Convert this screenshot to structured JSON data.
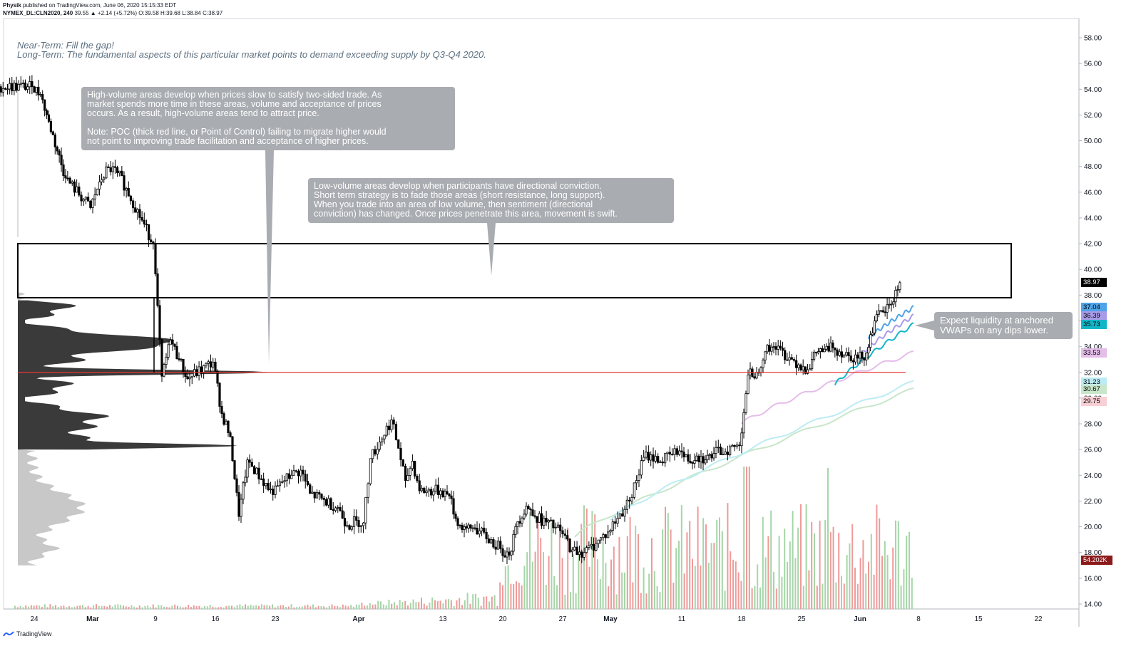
{
  "header": {
    "author": "Physik",
    "published": "published on TradingView.com, June 06, 2020 15:15:33 EDT",
    "symbol_line": "NYMEX_DL:CLN2020, 240",
    "last": "39.55",
    "change": "▲ +2.14 (+5.72%)",
    "ohlc": "O:39.58 H:39.68 L:38.84 C:38.97"
  },
  "notes": {
    "near_term": "Near-Term: Fill the gap!",
    "long_term": "Long-Term: The fundamental aspects of this particular market points to demand exceeding supply by Q3-Q4 2020."
  },
  "callouts": {
    "high_volume_p1": "High-volume areas develop when prices slow to satisfy two-sided trade. As\nmarket spends more time in these areas, volume and acceptance of prices\noccurs. As a result, high-volume areas tend to attract price.",
    "high_volume_p2": "Note: POC (thick red line, or Point of Control) failing to migrate higher would\nnot point to improving trade facilitation and acceptance of higher prices.",
    "low_volume": "Low-volume areas develop when participants have directional conviction.\nShort term strategy is to fade those areas (short resistance, long support).\nWhen you trade into an area of low volume, then sentiment (directional\nconviction) has changed. Once prices penetrate this area, movement is swift.",
    "liquidity": "Expect liquidity at anchored\nVWAPs on any dips lower."
  },
  "price_tags": [
    {
      "label": "38.97",
      "bg": "#000000",
      "fg": "#ffffff",
      "price": 38.97
    },
    {
      "label": "37.04",
      "bg": "#4fa3e8",
      "fg": "#000000",
      "price": 37.04
    },
    {
      "label": "36.39",
      "bg": "#a89be8",
      "fg": "#000000",
      "price": 36.39
    },
    {
      "label": "35.73",
      "bg": "#13b6c9",
      "fg": "#000000",
      "price": 35.73
    },
    {
      "label": "33.53",
      "bg": "#e4bde9",
      "fg": "#000000",
      "price": 33.53
    },
    {
      "label": "31.23",
      "bg": "#bcecf3",
      "fg": "#000000",
      "price": 31.23
    },
    {
      "label": "30.67",
      "bg": "#c8e6c9",
      "fg": "#000000",
      "price": 30.67
    },
    {
      "label": "29.75",
      "bg": "#f8cfd4",
      "fg": "#000000",
      "price": 29.75
    },
    {
      "label": "54.202K",
      "bg": "#8b1a1a",
      "fg": "#ffffff",
      "price": 17.4
    }
  ],
  "footer": {
    "brand": "TradingView"
  },
  "colors": {
    "poc": "#e53935",
    "profile_dark": "#3a3a3a",
    "profile_light": "#c8c8c8",
    "vol_up": "#a5d6a7",
    "vol_down": "#ef9a9a",
    "vwap_blue": "#4fa3e8",
    "vwap_purple": "#a89be8",
    "vwap_teal": "#13b6c9",
    "vwap_pink": "#e4bde9",
    "vwap_cyan": "#bcecf3",
    "vwap_green": "#c8e6c9"
  },
  "chart_data": {
    "type": "candlestick",
    "title": "",
    "symbol": "NYMEX_DL:CLN2020",
    "interval": "240",
    "y_axis": {
      "ticks": [
        14,
        16,
        18,
        20,
        22,
        24,
        26,
        28,
        30,
        32,
        34,
        36,
        38,
        40,
        42,
        44,
        46,
        48,
        50,
        52,
        54,
        56,
        58
      ],
      "tick_labels": [
        "14.00",
        "16.00",
        "18.00",
        "20.00",
        "22.00",
        "24.00",
        "26.00",
        "28.00",
        "30.00",
        "32.00",
        "34.00",
        "36.00",
        "38.00",
        "40.00",
        "42.00",
        "44.00",
        "46.00",
        "48.00",
        "50.00",
        "52.00",
        "54.00",
        "56.00",
        "58.00"
      ],
      "range": [
        13.2,
        59.3
      ]
    },
    "x_axis": {
      "ticks": [
        "24",
        "Mar",
        "9",
        "16",
        "23",
        "Apr",
        "13",
        "20",
        "27",
        "May",
        "11",
        "18",
        "25",
        "Jun",
        "8",
        "15",
        "22"
      ],
      "bold": [
        "Mar",
        "Apr",
        "May",
        "Jun"
      ]
    },
    "close_series": [
      [
        "Feb 20",
        54.2
      ],
      [
        "Feb 24",
        53.6
      ],
      [
        "Feb 25",
        51.5
      ],
      [
        "Feb 26",
        49.2
      ],
      [
        "Feb 27",
        47.1
      ],
      [
        "Feb 28",
        44.8
      ],
      [
        "Mar 2",
        46.8
      ],
      [
        "Mar 3",
        47.9
      ],
      [
        "Mar 4",
        47.5
      ],
      [
        "Mar 5",
        46.3
      ],
      [
        "Mar 6",
        42.0
      ],
      [
        "Mar 9",
        31.7
      ],
      [
        "Mar 10",
        34.5
      ],
      [
        "Mar 11",
        33.0
      ],
      [
        "Mar 12",
        31.5
      ],
      [
        "Mar 13",
        32.8
      ],
      [
        "Mar 16",
        28.8
      ],
      [
        "Mar 17",
        27.0
      ],
      [
        "Mar 18",
        20.8
      ],
      [
        "Mar 19",
        25.2
      ],
      [
        "Mar 20",
        22.5
      ],
      [
        "Mar 23",
        23.5
      ],
      [
        "Mar 24",
        24.0
      ],
      [
        "Mar 25",
        24.4
      ],
      [
        "Mar 26",
        22.6
      ],
      [
        "Mar 27",
        21.5
      ],
      [
        "Mar 30",
        20.1
      ],
      [
        "Mar 31",
        20.5
      ],
      [
        "Apr 1",
        20.3
      ],
      [
        "Apr 2",
        25.3
      ],
      [
        "Apr 3",
        28.3
      ],
      [
        "Apr 6",
        26.1
      ],
      [
        "Apr 7",
        23.6
      ],
      [
        "Apr 8",
        25.1
      ],
      [
        "Apr 9",
        22.8
      ],
      [
        "Apr 10",
        22.8
      ],
      [
        "Apr 13",
        22.4
      ],
      [
        "Apr 14",
        20.1
      ],
      [
        "Apr 15",
        19.9
      ],
      [
        "Apr 16",
        19.9
      ],
      [
        "Apr 17",
        18.3
      ],
      [
        "Apr 20",
        17.8
      ],
      [
        "Apr 21",
        20.4
      ],
      [
        "Apr 22",
        21.6
      ],
      [
        "Apr 23",
        20.8
      ],
      [
        "Apr 24",
        19.7
      ],
      [
        "Apr 27",
        18.2
      ],
      [
        "Apr 28",
        18.0
      ],
      [
        "Apr 29",
        18.7
      ],
      [
        "Apr 30",
        19.6
      ],
      [
        "May 1",
        22.0
      ],
      [
        "May 4",
        23.6
      ],
      [
        "May 5",
        25.4
      ],
      [
        "May 6",
        25.6
      ],
      [
        "May 7",
        25.0
      ],
      [
        "May 8",
        25.9
      ],
      [
        "May 11",
        25.1
      ],
      [
        "May 12",
        25.5
      ],
      [
        "May 13",
        25.2
      ],
      [
        "May 14",
        25.7
      ],
      [
        "May 15",
        26.3
      ],
      [
        "May 18",
        31.8
      ],
      [
        "May 19",
        32.0
      ],
      [
        "May 20",
        33.6
      ],
      [
        "May 21",
        34.0
      ],
      [
        "May 22",
        32.2
      ],
      [
        "May 26",
        33.5
      ],
      [
        "May 27",
        33.8
      ],
      [
        "May 28",
        33.9
      ],
      [
        "May 29",
        33.1
      ],
      [
        "Jun 1",
        33.5
      ],
      [
        "Jun 2",
        36.0
      ],
      [
        "Jun 3",
        36.7
      ],
      [
        "Jun 4",
        37.3
      ],
      [
        "Jun 5",
        38.97
      ]
    ],
    "volume_profile": {
      "poc": 32.0,
      "high_volume_range": [
        26.0,
        37.6
      ],
      "low_volume_range": [
        37.8,
        42.0
      ]
    },
    "annotations": {
      "gap_rectangle": [
        37.8,
        42.0
      ],
      "poc_line": 32.0
    }
  }
}
